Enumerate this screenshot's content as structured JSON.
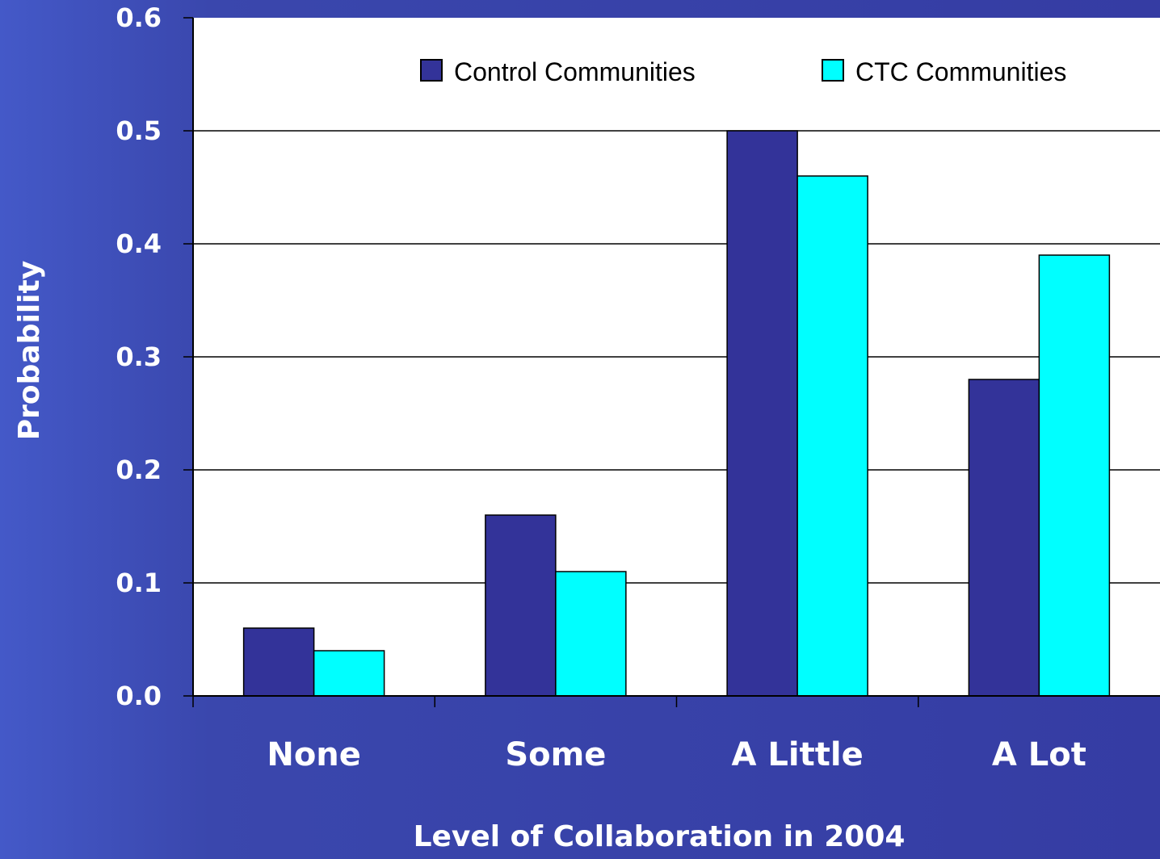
{
  "chart_data": {
    "type": "bar",
    "categories": [
      "None",
      "Some",
      "A Little",
      "A Lot"
    ],
    "series": [
      {
        "name": "Control Communities",
        "color": "#333399",
        "values": [
          0.06,
          0.16,
          0.5,
          0.28
        ]
      },
      {
        "name": "CTC Communities",
        "color": "#00ffff",
        "values": [
          0.04,
          0.11,
          0.46,
          0.39
        ]
      }
    ],
    "xlabel": "Level of Collaboration in 2004",
    "ylabel": "Probability",
    "ylim": [
      0,
      0.6
    ],
    "yticks": [
      "0.0",
      "0.1",
      "0.2",
      "0.3",
      "0.4",
      "0.5",
      "0.6"
    ],
    "grid": true,
    "legend_position": "top-right",
    "plot_background": "#ffffff"
  }
}
